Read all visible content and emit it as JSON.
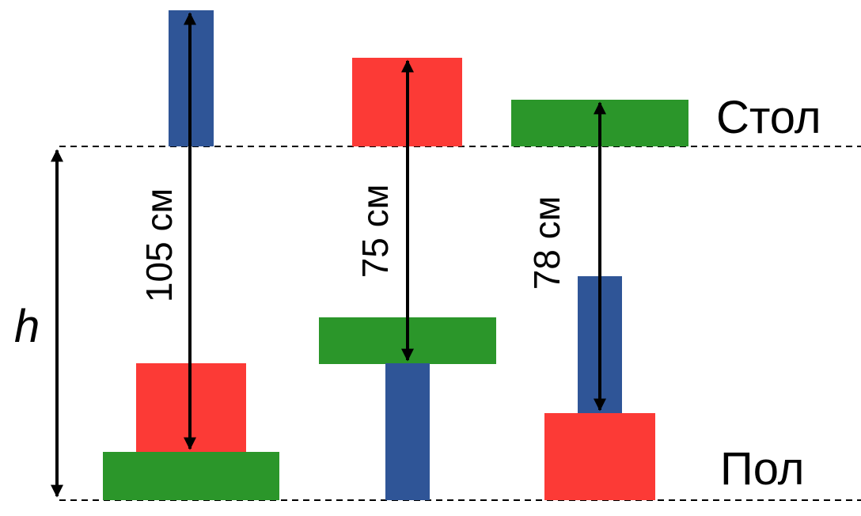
{
  "labels": {
    "table": "Стол",
    "floor": "Пол",
    "height": "h"
  },
  "measurements": [
    "105 см",
    "75 см",
    "78 см"
  ]
}
